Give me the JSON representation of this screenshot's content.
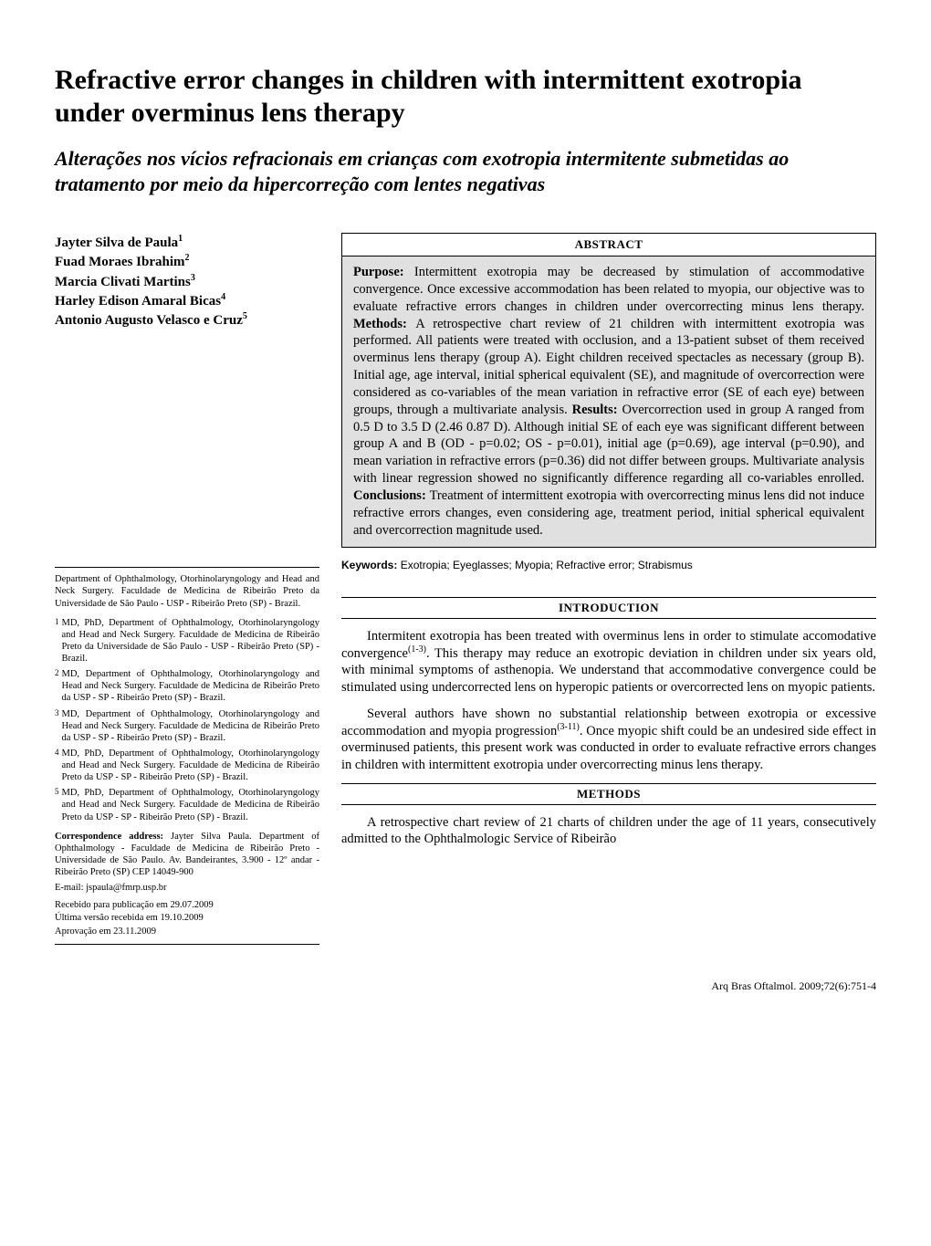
{
  "title": "Refractive error changes in children with intermittent exotropia under overminus lens therapy",
  "subtitle": "Alterações nos vícios refracionais em crianças com exotropia intermitente submetidas ao tratamento por meio da hipercorreção com lentes negativas",
  "authors": [
    {
      "name": "Jayter Silva de Paula",
      "sup": "1"
    },
    {
      "name": "Fuad Moraes Ibrahim",
      "sup": "2"
    },
    {
      "name": "Marcia Clivati Martins",
      "sup": "3"
    },
    {
      "name": "Harley Edison Amaral Bicas",
      "sup": "4"
    },
    {
      "name": "Antonio Augusto Velasco e Cruz",
      "sup": "5"
    }
  ],
  "affil_intro": "Department of Ophthalmology, Otorhinolaryngology and Head and Neck Surgery. Faculdade de Medicina de Ribeirão Preto da Universidade de São Paulo - USP - Ribeirão Preto (SP) - Brazil.",
  "affils": [
    {
      "n": "1",
      "text": "MD, PhD, Department of Ophthalmology, Otorhinolaryngology and Head and Neck Surgery. Faculdade de Medicina de Ribeirão Preto da Universidade de São Paulo - USP - Ribeirão Preto (SP) - Brazil."
    },
    {
      "n": "2",
      "text": "MD, Department of Ophthalmology, Otorhinolaryngology and Head and Neck Surgery. Faculdade de Medicina de Ribeirão Preto da USP - SP - Ribeirão Preto (SP) - Brazil."
    },
    {
      "n": "3",
      "text": "MD, Department of Ophthalmology, Otorhinolaryngology and Head and Neck Surgery. Faculdade de Medicina de Ribeirão Preto da USP - SP - Ribeirão Preto (SP) - Brazil."
    },
    {
      "n": "4",
      "text": "MD, PhD, Department of Ophthalmology, Otorhinolaryngology and Head and Neck Surgery. Faculdade de Medicina de Ribeirão Preto da USP - SP - Ribeirão Preto (SP) - Brazil."
    },
    {
      "n": "5",
      "text": "MD, PhD, Department of Ophthalmology, Otorhinolaryngology and Head and Neck Surgery. Faculdade de Medicina de Ribeirão Preto da USP - SP - Ribeirão Preto (SP) - Brazil."
    }
  ],
  "corr_label": "Correspondence address:",
  "corr_text": " Jayter Silva Paula. Department of Ophthalmology - Faculdade de Medicina de Ribeirão Preto - Universidade de São Paulo. Av. Bandeirantes, 3.900 - 12º andar - Ribeirão Preto (SP) CEP 14049-900",
  "email": "E-mail: jspaula@fmrp.usp.br",
  "received": [
    "Recebido para publicação em 29.07.2009",
    "Última versão recebida em 19.10.2009",
    "Aprovação em 23.11.2009"
  ],
  "abstract_header": "ABSTRACT",
  "abstract": {
    "purpose_label": "Purpose: ",
    "purpose": "Intermittent exotropia may be decreased by stimulation of accommodative convergence. Once excessive accommodation has been related to myopia, our objective was to evaluate refractive errors changes in children under overcorrecting minus lens therapy. ",
    "methods_label": "Methods: ",
    "methods": "A retrospective chart review of 21 children with intermittent exotropia was performed. All patients were treated with occlusion, and a 13-patient subset of them received overminus lens therapy (group A). Eight children received spectacles as necessary (group B). Initial age, age interval, initial spherical equivalent (SE), and magnitude of overcorrection were considered as co-variables of the mean variation in refractive error (SE of each eye) between groups, through a multivariate analysis. ",
    "results_label": "Results: ",
    "results": "Overcorrection used in group A ranged from 0.5 D to 3.5 D (2.46   0.87 D). Although initial SE of each eye was significant different between group A and B (OD - p=0.02; OS - p=0.01), initial age (p=0.69), age interval (p=0.90), and mean variation in refractive errors (p=0.36) did not differ between groups. Multivariate analysis with linear regression showed no significantly difference regarding all co-variables enrolled. ",
    "conclusions_label": "Conclusions: ",
    "conclusions": "Treatment of intermittent exotropia with overcorrecting minus lens did not induce refractive errors changes, even considering age, treatment period, initial spherical equivalent and overcorrection magnitude used."
  },
  "keywords_label": "Keywords: ",
  "keywords": "Exotropia; Eyeglasses; Myopia; Refractive error; Strabismus",
  "sections": {
    "intro_header": "INTRODUCTION",
    "intro_p1a": "Intermitent exotropia has been treated with overminus lens in order to stimulate accomodative convergence",
    "intro_p1_ref": "(1-3)",
    "intro_p1b": ". This therapy may reduce an exotropic deviation in children under six years old, with minimal symptoms of asthenopia. We understand that accommodative convergence could be stimulated using undercorrected lens on hyperopic patients or overcorrected lens on myopic patients.",
    "intro_p2a": "Several authors have shown no substantial relationship between exotropia or excessive accommodation and myopia progression",
    "intro_p2_ref": "(3-11)",
    "intro_p2b": ". Once myopic shift could be an undesired side effect in overminused patients, this present work was conducted in order to evaluate refractive errors changes in children with intermittent exotropia under overcorrecting minus lens therapy.",
    "methods_header": "METHODS",
    "methods_p1": "A retrospective chart review of 21 charts of children under the age of 11 years, consecutively admitted to the Ophthalmologic Service of Ribeirão"
  },
  "footer": "Arq Bras Oftalmol. 2009;72(6):751-4"
}
